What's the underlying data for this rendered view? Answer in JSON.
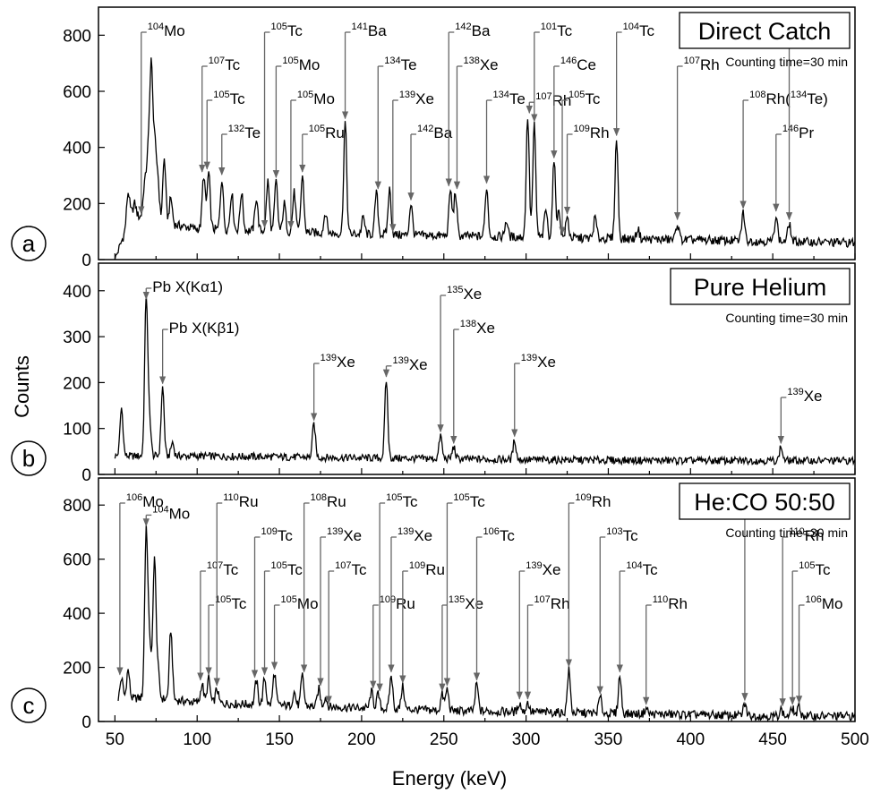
{
  "chart_data": [
    {
      "type": "line",
      "panel": "a",
      "title": "Direct Catch",
      "subtitle": "Counting time=30 min",
      "xlabel": "Energy (keV)",
      "ylabel": "Counts",
      "xlim": [
        40,
        500
      ],
      "ylim": [
        0,
        900
      ],
      "yticks": [
        0,
        200,
        400,
        600,
        800
      ],
      "baseline": {
        "x": [
          50,
          60,
          80,
          100,
          150,
          200,
          250,
          300,
          350,
          400,
          450,
          500
        ],
        "y": [
          0,
          160,
          130,
          110,
          100,
          90,
          85,
          80,
          75,
          70,
          65,
          60
        ]
      },
      "peaks": [
        {
          "x": 58,
          "y": 240
        },
        {
          "x": 62,
          "y": 200
        },
        {
          "x": 68,
          "y": 260
        },
        {
          "x": 70,
          "y": 350
        },
        {
          "x": 72,
          "y": 680
        },
        {
          "x": 74,
          "y": 410
        },
        {
          "x": 76,
          "y": 300
        },
        {
          "x": 80,
          "y": 360
        },
        {
          "x": 84,
          "y": 220
        },
        {
          "x": 104,
          "y": 300
        },
        {
          "x": 107,
          "y": 310
        },
        {
          "x": 115,
          "y": 290
        },
        {
          "x": 121,
          "y": 240
        },
        {
          "x": 127,
          "y": 240
        },
        {
          "x": 136,
          "y": 220
        },
        {
          "x": 143,
          "y": 280
        },
        {
          "x": 148,
          "y": 280
        },
        {
          "x": 153,
          "y": 200
        },
        {
          "x": 159,
          "y": 240
        },
        {
          "x": 164,
          "y": 300
        },
        {
          "x": 178,
          "y": 170
        },
        {
          "x": 190,
          "y": 490
        },
        {
          "x": 201,
          "y": 150
        },
        {
          "x": 209,
          "y": 240
        },
        {
          "x": 217,
          "y": 250
        },
        {
          "x": 230,
          "y": 200
        },
        {
          "x": 254,
          "y": 250
        },
        {
          "x": 257,
          "y": 240
        },
        {
          "x": 276,
          "y": 260
        },
        {
          "x": 288,
          "y": 140
        },
        {
          "x": 301,
          "y": 510
        },
        {
          "x": 305,
          "y": 480
        },
        {
          "x": 312,
          "y": 180
        },
        {
          "x": 317,
          "y": 350
        },
        {
          "x": 320,
          "y": 170
        },
        {
          "x": 325,
          "y": 150
        },
        {
          "x": 342,
          "y": 150
        },
        {
          "x": 355,
          "y": 430
        },
        {
          "x": 368,
          "y": 110
        },
        {
          "x": 392,
          "y": 130
        },
        {
          "x": 432,
          "y": 170
        },
        {
          "x": 452,
          "y": 160
        },
        {
          "x": 460,
          "y": 130
        }
      ],
      "annotations": [
        {
          "sup": "104",
          "label": "Mo",
          "target_x": 66
        },
        {
          "sup": "107",
          "label": "Tc",
          "target_x": 103
        },
        {
          "sup": "105",
          "label": "Tc",
          "target_x": 106
        },
        {
          "sup": "132",
          "label": "Te",
          "target_x": 115
        },
        {
          "sup": "105",
          "label": "Tc",
          "target_x": 141
        },
        {
          "sup": "105",
          "label": "Mo",
          "target_x": 148
        },
        {
          "sup": "105",
          "label": "Mo",
          "target_x": 157
        },
        {
          "sup": "105",
          "label": "Ru",
          "target_x": 164
        },
        {
          "sup": "141",
          "label": "Ba",
          "target_x": 190
        },
        {
          "sup": "134",
          "label": "Te",
          "target_x": 210
        },
        {
          "sup": "139",
          "label": "Xe",
          "target_x": 219
        },
        {
          "sup": "142",
          "label": "Ba",
          "target_x": 230
        },
        {
          "sup": "142",
          "label": "Ba",
          "target_x": 253
        },
        {
          "sup": "138",
          "label": "Xe",
          "target_x": 258
        },
        {
          "sup": "134",
          "label": "Te",
          "target_x": 276
        },
        {
          "sup": "107",
          "label": "Rh",
          "target_x": 302
        },
        {
          "sup": "101",
          "label": "Tc",
          "target_x": 305
        },
        {
          "sup": "146",
          "label": "Ce",
          "target_x": 317
        },
        {
          "sup": "105",
          "label": "Tc",
          "target_x": 322
        },
        {
          "sup": "109",
          "label": "Rh",
          "target_x": 325
        },
        {
          "sup": "104",
          "label": "Tc",
          "target_x": 355
        },
        {
          "sup": "107",
          "label": "Rh",
          "target_x": 392
        },
        {
          "sup": "108",
          "label": "Rh(",
          "sup2": "134",
          "label2": "Te)",
          "target_x": 432
        },
        {
          "sup": "146",
          "label": "Pr",
          "target_x": 452
        },
        {
          "sup": "134",
          "label": "Te",
          "target_x": 460
        }
      ]
    },
    {
      "type": "line",
      "panel": "b",
      "title": "Pure Helium",
      "subtitle": "Counting time=30 min",
      "xlabel": "Energy (keV)",
      "ylabel": "Counts",
      "xlim": [
        40,
        500
      ],
      "ylim": [
        0,
        460
      ],
      "yticks": [
        0,
        100,
        200,
        300,
        400
      ],
      "baseline": {
        "x": [
          50,
          80,
          100,
          150,
          200,
          250,
          300,
          400,
          500
        ],
        "y": [
          40,
          40,
          40,
          38,
          36,
          34,
          32,
          30,
          30
        ]
      },
      "peaks": [
        {
          "x": 54,
          "y": 145
        },
        {
          "x": 69,
          "y": 390
        },
        {
          "x": 71,
          "y": 120
        },
        {
          "x": 79,
          "y": 190
        },
        {
          "x": 85,
          "y": 70
        },
        {
          "x": 171,
          "y": 110
        },
        {
          "x": 215,
          "y": 205
        },
        {
          "x": 248,
          "y": 85
        },
        {
          "x": 256,
          "y": 60
        },
        {
          "x": 293,
          "y": 75
        },
        {
          "x": 455,
          "y": 60
        }
      ],
      "annotations": [
        {
          "label": "Pb X(Kα1)",
          "target_x": 69
        },
        {
          "label": "Pb X(Kβ1)",
          "target_x": 79
        },
        {
          "sup": "139",
          "label": "Xe",
          "target_x": 171
        },
        {
          "sup": "139",
          "label": "Xe",
          "target_x": 215
        },
        {
          "sup": "135",
          "label": "Xe",
          "target_x": 248
        },
        {
          "sup": "138",
          "label": "Xe",
          "target_x": 256
        },
        {
          "sup": "139",
          "label": "Xe",
          "target_x": 293
        },
        {
          "sup": "139",
          "label": "Xe",
          "target_x": 455
        }
      ]
    },
    {
      "type": "line",
      "panel": "c",
      "title": "He:CO 50:50",
      "subtitle": "Counting time=30 min",
      "xlabel": "Energy (keV)",
      "ylabel": "Counts",
      "xlim": [
        40,
        500
      ],
      "ylim": [
        0,
        900
      ],
      "yticks": [
        0,
        200,
        400,
        600,
        800
      ],
      "xticks": [
        50,
        100,
        150,
        200,
        250,
        300,
        350,
        400,
        450,
        500
      ],
      "baseline": {
        "x": [
          52,
          70,
          100,
          150,
          200,
          250,
          300,
          350,
          400,
          450,
          500
        ],
        "y": [
          80,
          90,
          70,
          60,
          50,
          40,
          35,
          30,
          25,
          20,
          20
        ]
      },
      "peaks": [
        {
          "x": 54,
          "y": 160
        },
        {
          "x": 58,
          "y": 190
        },
        {
          "x": 69,
          "y": 710
        },
        {
          "x": 71,
          "y": 300
        },
        {
          "x": 74,
          "y": 600
        },
        {
          "x": 76,
          "y": 200
        },
        {
          "x": 84,
          "y": 340
        },
        {
          "x": 103,
          "y": 140
        },
        {
          "x": 107,
          "y": 160
        },
        {
          "x": 112,
          "y": 120
        },
        {
          "x": 136,
          "y": 150
        },
        {
          "x": 141,
          "y": 160
        },
        {
          "x": 147,
          "y": 180
        },
        {
          "x": 159,
          "y": 110
        },
        {
          "x": 164,
          "y": 170
        },
        {
          "x": 174,
          "y": 120
        },
        {
          "x": 178,
          "y": 90
        },
        {
          "x": 206,
          "y": 110
        },
        {
          "x": 210,
          "y": 100
        },
        {
          "x": 218,
          "y": 170
        },
        {
          "x": 225,
          "y": 130
        },
        {
          "x": 249,
          "y": 100
        },
        {
          "x": 252,
          "y": 120
        },
        {
          "x": 270,
          "y": 140
        },
        {
          "x": 296,
          "y": 70
        },
        {
          "x": 301,
          "y": 70
        },
        {
          "x": 326,
          "y": 190
        },
        {
          "x": 345,
          "y": 90
        },
        {
          "x": 357,
          "y": 170
        },
        {
          "x": 373,
          "y": 50
        },
        {
          "x": 433,
          "y": 65
        },
        {
          "x": 455,
          "y": 45
        },
        {
          "x": 462,
          "y": 50
        },
        {
          "x": 466,
          "y": 55
        }
      ],
      "annotations": [
        {
          "sup": "106",
          "label": "Mo",
          "target_x": 53
        },
        {
          "sup": "104",
          "label": "Mo",
          "target_x": 69
        },
        {
          "sup": "107",
          "label": "Tc",
          "target_x": 102
        },
        {
          "sup": "105",
          "label": "Tc",
          "target_x": 107
        },
        {
          "sup": "110",
          "label": "Ru",
          "target_x": 112
        },
        {
          "sup": "109",
          "label": "Tc",
          "target_x": 135
        },
        {
          "sup": "105",
          "label": "Tc",
          "target_x": 141
        },
        {
          "sup": "105",
          "label": "Mo",
          "target_x": 147
        },
        {
          "sup": "108",
          "label": "Ru",
          "target_x": 165
        },
        {
          "sup": "139",
          "label": "Xe",
          "target_x": 175
        },
        {
          "sup": "107",
          "label": "Tc",
          "target_x": 180
        },
        {
          "sup": "109",
          "label": "Ru",
          "target_x": 207
        },
        {
          "sup": "105",
          "label": "Tc",
          "target_x": 211
        },
        {
          "sup": "139",
          "label": "Xe",
          "target_x": 218
        },
        {
          "sup": "109",
          "label": "Ru",
          "target_x": 225
        },
        {
          "sup": "135",
          "label": "Xe",
          "target_x": 249
        },
        {
          "sup": "105",
          "label": "Tc",
          "target_x": 252
        },
        {
          "sup": "106",
          "label": "Tc",
          "target_x": 270
        },
        {
          "sup": "139",
          "label": "Xe",
          "target_x": 296
        },
        {
          "sup": "107",
          "label": "Rh",
          "target_x": 301
        },
        {
          "sup": "109",
          "label": "Rh",
          "target_x": 326
        },
        {
          "sup": "103",
          "label": "Tc",
          "target_x": 345
        },
        {
          "sup": "104",
          "label": "Tc",
          "target_x": 357
        },
        {
          "sup": "110",
          "label": "Rh",
          "target_x": 373
        },
        {
          "sup": "108",
          "label": "Rh",
          "target_x": 433
        },
        {
          "sup": "110",
          "label": "Rh",
          "target_x": 456
        },
        {
          "sup": "105",
          "label": "Tc",
          "target_x": 462
        },
        {
          "sup": "106",
          "label": "Mo",
          "target_x": 466
        }
      ]
    }
  ],
  "figure": {
    "xlabel": "Energy (keV)",
    "ylabel": "Counts",
    "line_color": "#000000",
    "arrow_color": "#666666"
  }
}
